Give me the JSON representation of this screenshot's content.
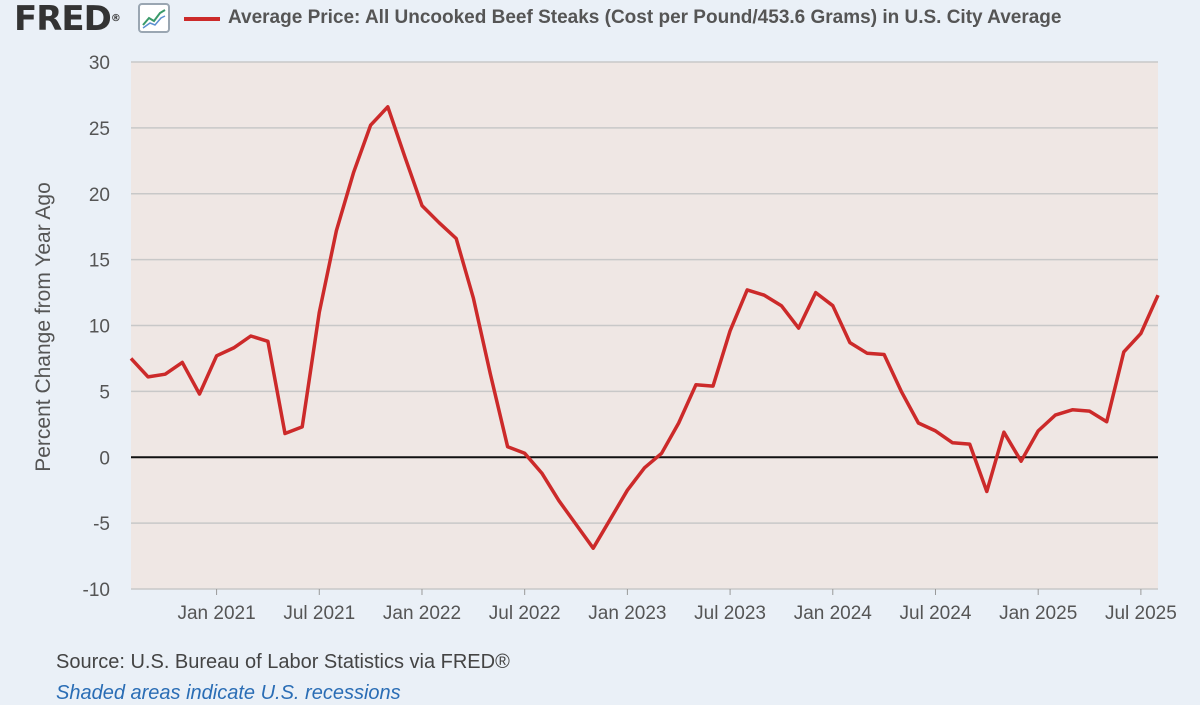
{
  "header": {
    "logo_text": "FRED",
    "logo_mark": "®",
    "logo_icon": "chart-line-icon",
    "legend_label": "Average Price: All Uncooked Beef Steaks (Cost per Pound/453.6 Grams) in U.S. City Average",
    "series_color": "#cc2a2a"
  },
  "footer": {
    "source": "Source: U.S. Bureau of Labor Statistics via FRED®",
    "shade_note": "Shaded areas indicate U.S. recessions"
  },
  "chart_data": {
    "type": "line",
    "title": "",
    "ylabel": "Percent Change from Year Ago",
    "xlabel": "",
    "ylim": [
      -10,
      30
    ],
    "yticks": [
      30,
      25,
      20,
      15,
      10,
      5,
      0,
      -5,
      -10
    ],
    "xticks": [
      "Jan 2021",
      "Jul 2021",
      "Jan 2022",
      "Jul 2022",
      "Jan 2023",
      "Jul 2023",
      "Jan 2024",
      "Jul 2024",
      "Jan 2025",
      "Jul 2025"
    ],
    "xlim": [
      "2020-08",
      "2025-08"
    ],
    "grid": true,
    "zero_line": true,
    "colors": {
      "series": "#cc2a2a",
      "plot_bg": "#efe7e4",
      "grid": "#c8c8c8"
    },
    "series": [
      {
        "name": "Average Price: All Uncooked Beef Steaks (Cost per Pound/453.6 Grams) in U.S. City Average",
        "x": [
          "2020-08",
          "2020-09",
          "2020-10",
          "2020-11",
          "2020-12",
          "2021-01",
          "2021-02",
          "2021-03",
          "2021-04",
          "2021-05",
          "2021-06",
          "2021-07",
          "2021-08",
          "2021-09",
          "2021-10",
          "2021-11",
          "2021-12",
          "2022-01",
          "2022-02",
          "2022-03",
          "2022-04",
          "2022-05",
          "2022-06",
          "2022-07",
          "2022-08",
          "2022-09",
          "2022-10",
          "2022-11",
          "2022-12",
          "2023-01",
          "2023-02",
          "2023-03",
          "2023-04",
          "2023-05",
          "2023-06",
          "2023-07",
          "2023-08",
          "2023-09",
          "2023-10",
          "2023-11",
          "2023-12",
          "2024-01",
          "2024-02",
          "2024-03",
          "2024-04",
          "2024-05",
          "2024-06",
          "2024-07",
          "2024-08",
          "2024-09",
          "2024-10",
          "2024-11",
          "2024-12",
          "2025-01",
          "2025-02",
          "2025-03",
          "2025-04",
          "2025-05",
          "2025-06",
          "2025-07",
          "2025-08"
        ],
        "values": [
          7.5,
          6.1,
          6.3,
          7.2,
          4.8,
          7.7,
          8.3,
          9.2,
          8.8,
          1.8,
          2.3,
          11.0,
          17.2,
          21.6,
          25.2,
          26.6,
          22.8,
          19.1,
          17.8,
          16.6,
          12.1,
          6.3,
          0.8,
          0.3,
          -1.2,
          -3.3,
          -5.1,
          -6.9,
          -4.7,
          -2.5,
          -0.8,
          0.3,
          2.6,
          5.5,
          5.4,
          9.6,
          12.7,
          12.3,
          11.5,
          9.8,
          12.5,
          11.5,
          8.7,
          7.9,
          7.8,
          5.0,
          2.6,
          2.0,
          1.1,
          1.0,
          -2.6,
          1.9,
          -0.3,
          2.0,
          3.2,
          3.6,
          3.5,
          2.7,
          8.0,
          9.4,
          12.3
        ]
      }
    ]
  }
}
